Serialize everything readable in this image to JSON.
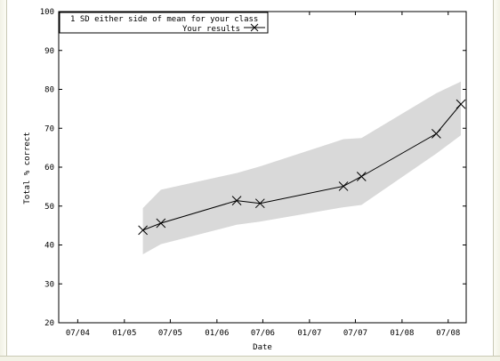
{
  "chart_data": {
    "type": "line",
    "xlabel": "Date",
    "ylabel": "Total % correct",
    "ylim": [
      20,
      100
    ],
    "yticks": [
      20,
      30,
      40,
      50,
      60,
      70,
      80,
      90,
      100
    ],
    "xlim": [
      "2004-04-17",
      "2008-09-10"
    ],
    "xticks": [
      {
        "date": "2004-07-01",
        "label": "07/04"
      },
      {
        "date": "2005-01-01",
        "label": "01/05"
      },
      {
        "date": "2005-07-01",
        "label": "07/05"
      },
      {
        "date": "2006-01-01",
        "label": "01/06"
      },
      {
        "date": "2006-07-01",
        "label": "07/06"
      },
      {
        "date": "2007-01-01",
        "label": "01/07"
      },
      {
        "date": "2007-07-01",
        "label": "07/07"
      },
      {
        "date": "2008-01-01",
        "label": "01/08"
      },
      {
        "date": "2008-07-01",
        "label": "07/08"
      }
    ],
    "legend": {
      "placement": "top-left",
      "band_label": "1 SD either side of mean for your class",
      "line_label": "Your results"
    },
    "band": {
      "name": "1 SD either side of mean for your class",
      "color": "#d9d9d9",
      "x": [
        "2005-03-15",
        "2005-05-25",
        "2006-03-20",
        "2006-06-20",
        "2007-05-15",
        "2007-07-25",
        "2008-05-15",
        "2008-08-20"
      ],
      "upper": [
        49.5,
        54.2,
        58.5,
        60.2,
        67.2,
        67.5,
        79.0,
        82.0
      ],
      "lower": [
        37.6,
        40.2,
        45.2,
        46.0,
        49.7,
        50.3,
        63.5,
        68.2
      ]
    },
    "series": [
      {
        "name": "Your results",
        "color": "#000000",
        "marker": "x",
        "x": [
          "2005-03-15",
          "2005-05-25",
          "2006-03-20",
          "2006-06-20",
          "2007-05-15",
          "2007-07-25",
          "2008-05-15",
          "2008-08-20"
        ],
        "values": [
          43.8,
          45.6,
          51.4,
          50.7,
          55.1,
          57.6,
          68.6,
          76.2
        ]
      }
    ]
  }
}
